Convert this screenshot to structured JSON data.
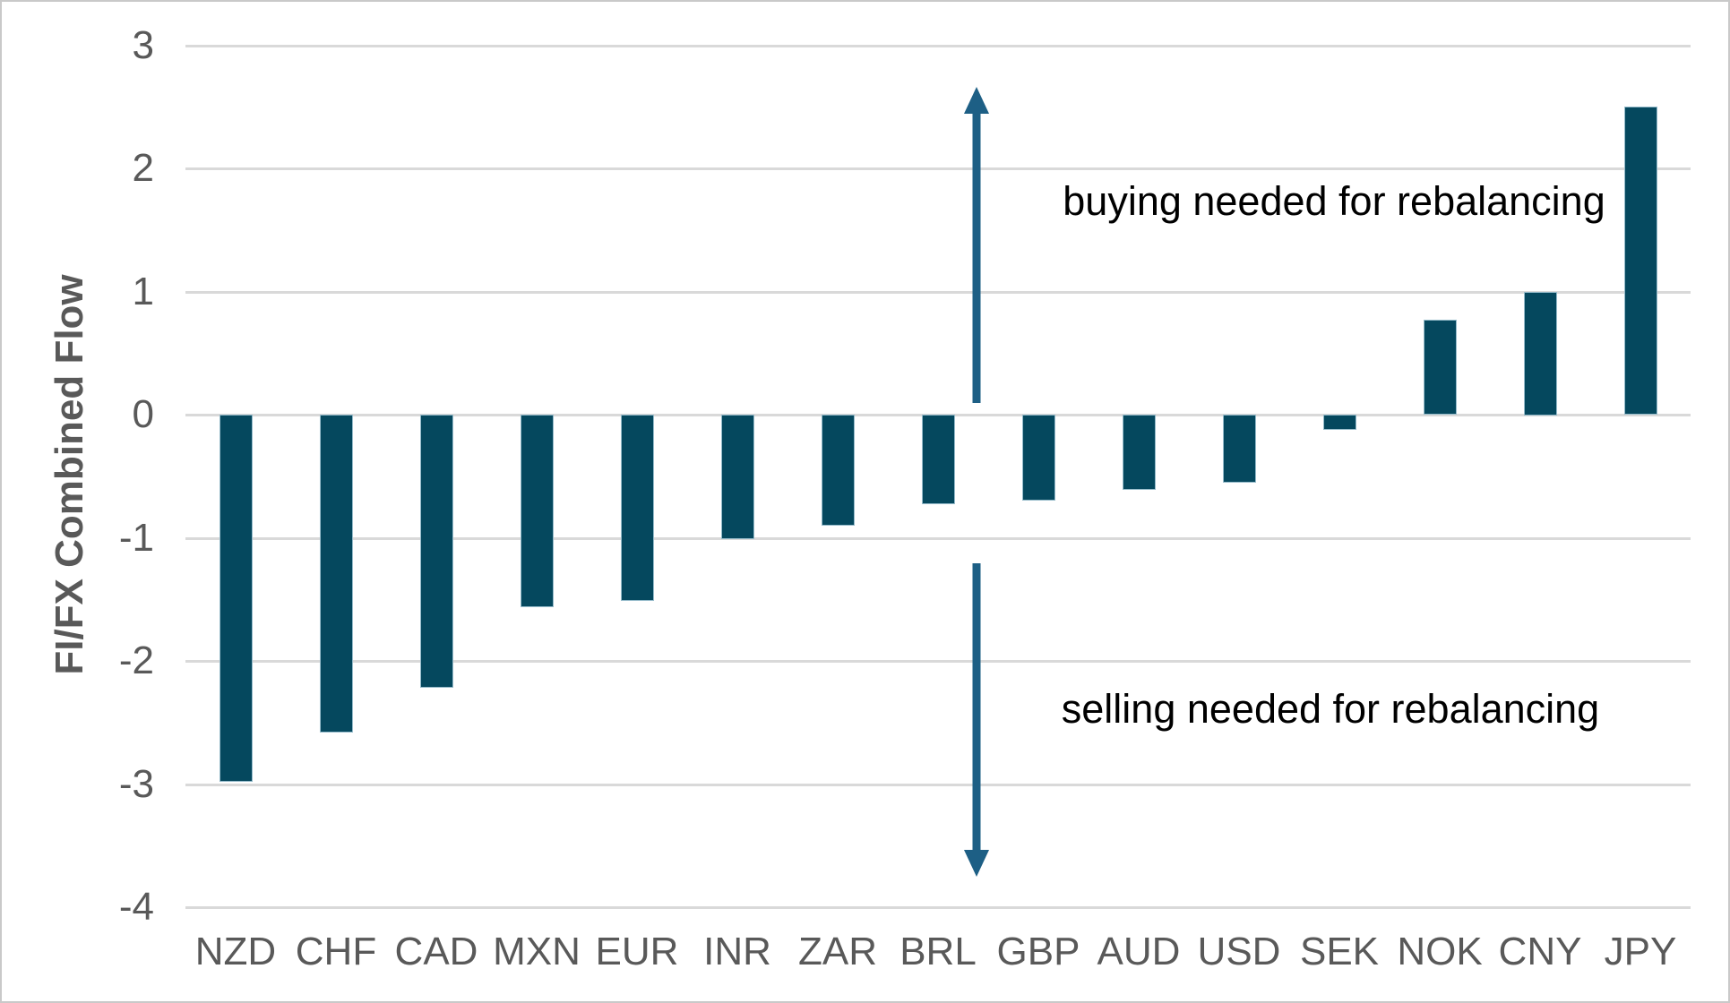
{
  "chart_data": {
    "type": "bar",
    "title": "",
    "xlabel": "",
    "ylabel": "FI/FX Combined Flow",
    "categories": [
      "NZD",
      "CHF",
      "CAD",
      "MXN",
      "EUR",
      "INR",
      "ZAR",
      "BRL",
      "GBP",
      "AUD",
      "USD",
      "SEK",
      "NOK",
      "CNY",
      "JPY"
    ],
    "values": [
      -2.98,
      -2.58,
      -2.22,
      -1.56,
      -1.51,
      -1.01,
      -0.9,
      -0.73,
      -0.7,
      -0.61,
      -0.55,
      -0.12,
      0.77,
      1.0,
      2.5
    ],
    "ylim": [
      -4,
      3
    ],
    "yticks": [
      3,
      2,
      1,
      0,
      -1,
      -2,
      -3,
      -4
    ],
    "grid": true,
    "legend_position": "none",
    "annotations": [
      {
        "text": "buying needed for rebalancing",
        "meaning": "positive bars / above zero"
      },
      {
        "text": "selling needed for rebalancing",
        "meaning": "negative bars / below zero"
      }
    ],
    "colors": {
      "bar": "#05485e",
      "arrow": "#1d5f85",
      "gridline": "#d9d9d9",
      "axis_text": "#595959",
      "annotation_text": "#000000",
      "background": "#ffffff",
      "frame_border": "#c9c9c9"
    }
  }
}
